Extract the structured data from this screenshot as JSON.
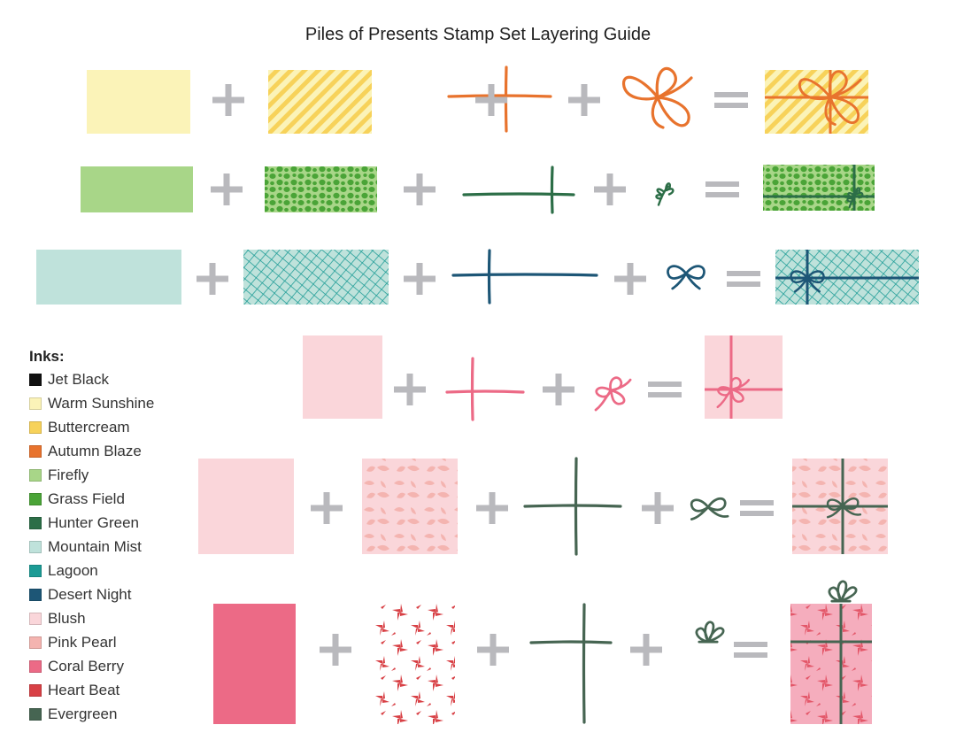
{
  "title": "Piles of Presents Stamp Set Layering Guide",
  "legend": {
    "heading": "Inks:",
    "inks": [
      {
        "name": "Jet Black",
        "color": "#111111"
      },
      {
        "name": "Warm Sunshine",
        "color": "#fbf3b8"
      },
      {
        "name": "Buttercream",
        "color": "#f7d25a"
      },
      {
        "name": "Autumn Blaze",
        "color": "#e8732d"
      },
      {
        "name": "Firefly",
        "color": "#a8d688"
      },
      {
        "name": "Grass Field",
        "color": "#4aa437"
      },
      {
        "name": "Hunter Green",
        "color": "#2c6e47"
      },
      {
        "name": "Mountain Mist",
        "color": "#bfe2db"
      },
      {
        "name": "Lagoon",
        "color": "#1b9b95"
      },
      {
        "name": "Desert Night",
        "color": "#1d5676"
      },
      {
        "name": "Blush",
        "color": "#fad6da"
      },
      {
        "name": "Pink Pearl",
        "color": "#f4b4b0"
      },
      {
        "name": "Coral Berry",
        "color": "#ec6a86"
      },
      {
        "name": "Heart Beat",
        "color": "#d84045"
      },
      {
        "name": "Evergreen",
        "color": "#466552"
      }
    ]
  },
  "operators": {
    "plus": "+",
    "equals": "="
  },
  "rows": [
    {
      "base_color": "#fbf3b8",
      "pattern": "stripes",
      "pattern_color": "#f7d25a",
      "ribbon_color": "#e8732d",
      "bow": "big-bow"
    },
    {
      "base_color": "#a8d688",
      "pattern": "dots",
      "pattern_color": "#4aa437",
      "ribbon_color": "#2c6e47",
      "bow": "sprig"
    },
    {
      "base_color": "#bfe2db",
      "pattern": "crosshatch",
      "pattern_color": "#1b9b95",
      "ribbon_color": "#1d5676",
      "bow": "small-bow"
    },
    {
      "base_color": "#fad6da",
      "pattern": "none",
      "pattern_color": "",
      "ribbon_color": "#ec6a86",
      "bow": "loopy-bow"
    },
    {
      "base_color": "#fad6da",
      "pattern": "holly",
      "pattern_color": "#f4b4b0",
      "ribbon_color": "#466552",
      "bow": "leaf-bow"
    },
    {
      "base_color": "#ec6a86",
      "pattern": "poinsettia",
      "pattern_color": "#d84045",
      "ribbon_color": "#466552",
      "bow": "fan-bow"
    }
  ]
}
